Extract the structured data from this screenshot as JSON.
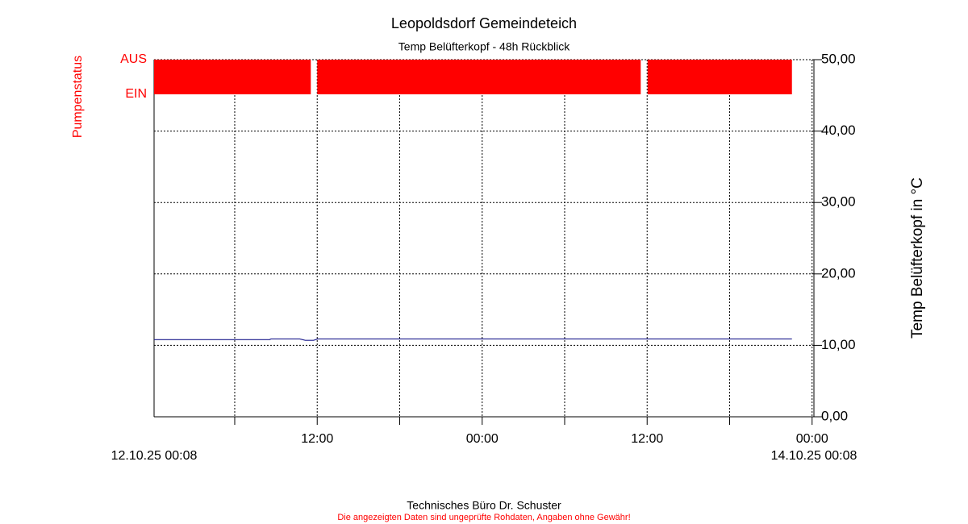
{
  "chart_data": {
    "type": "line",
    "title": "Leopoldsdorf Gemeindeteich",
    "subtitle": "Temp Belüfterkopf - 48h Rückblick",
    "y2_label": "Temp Belüfterkopf in °C",
    "footer": "Technisches Büro Dr. Schuster",
    "disclaimer": "Die angezeigten Daten sind ungeprüfte Rohdaten, Angaben ohne Gewähr!",
    "xlim": [
      0,
      48
    ],
    "xticks": [
      {
        "value": 0,
        "label": "12.10.25 00:08"
      },
      {
        "value": 11.867,
        "label": "12:00"
      },
      {
        "value": 23.867,
        "label": "00:00"
      },
      {
        "value": 35.867,
        "label": "12:00"
      },
      {
        "value": 47.867,
        "label": "00:00"
      },
      {
        "value": 48,
        "label": "14.10.25 00:08"
      }
    ],
    "xminor_ticks": [
      5.867,
      17.867,
      29.867,
      41.867
    ],
    "ylim": [
      0,
      50
    ],
    "yticks": [
      {
        "value": 0,
        "label": "0,00"
      },
      {
        "value": 10,
        "label": "10,00"
      },
      {
        "value": 20,
        "label": "20,00"
      },
      {
        "value": 30,
        "label": "30,00"
      },
      {
        "value": 40,
        "label": "40,00"
      },
      {
        "value": 50,
        "label": "50,00"
      }
    ],
    "grid": true,
    "series": [
      {
        "name": "Temp Belüfterkopf",
        "color": "#1a1a8c",
        "x": [
          0,
          8.4,
          8.5,
          10.6,
          11.0,
          11.6,
          11.9,
          46.4
        ],
        "values": [
          10.8,
          10.8,
          10.9,
          10.9,
          10.7,
          10.7,
          10.9,
          10.9
        ]
      }
    ],
    "pump_status": {
      "name": "Pumpenstatus",
      "color": "#ff0000",
      "ticks": [
        {
          "value": 0,
          "label": "EIN"
        },
        {
          "value": 1,
          "label": "AUS"
        }
      ],
      "starts": [
        0,
        11.87,
        35.9
      ],
      "ends": [
        11.4,
        35.4,
        46.4
      ],
      "values": [
        1,
        1,
        1
      ]
    }
  }
}
